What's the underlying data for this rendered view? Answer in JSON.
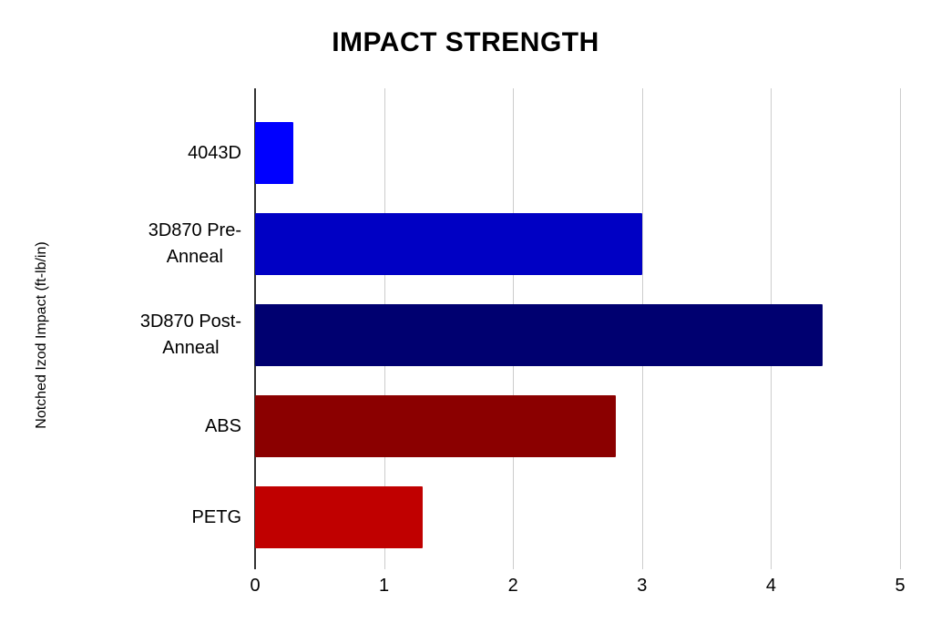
{
  "title": "IMPACT STRENGTH",
  "chart_data": {
    "type": "bar",
    "orientation": "horizontal",
    "title": "IMPACT STRENGTH",
    "ylabel": "Notched Izod Impact (ft-lb/in)",
    "xlabel": "",
    "categories": [
      "4043D",
      "3D870 Pre-\nAnneal",
      "3D870 Post-\nAnneal",
      "ABS",
      "PETG"
    ],
    "values": [
      0.3,
      3,
      4.4,
      2.8,
      1.3
    ],
    "bar_colors": [
      "#0000ff",
      "#0000c4",
      "#000070",
      "#8b0000",
      "#c00000"
    ],
    "xlim": [
      0,
      5
    ],
    "x_ticks": [
      0,
      1,
      2,
      3,
      4,
      5
    ],
    "grid": true,
    "legend": "none",
    "colors": {
      "background": "#ffffff",
      "gridline": "#cccccc",
      "axis": "#333333",
      "text": "#000000"
    }
  }
}
